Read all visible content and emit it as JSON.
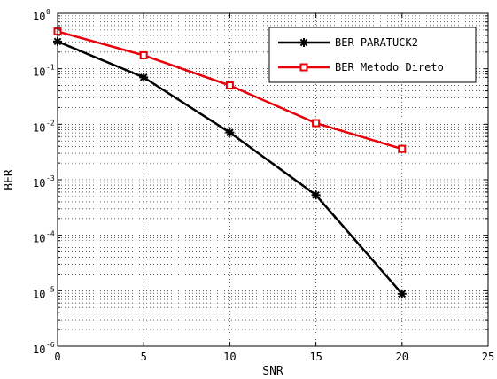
{
  "chart_data": {
    "type": "line",
    "title": "",
    "xlabel": "SNR",
    "ylabel": "BER",
    "xlim": [
      0,
      25
    ],
    "ylim": [
      1e-06,
      1
    ],
    "yscale": "log",
    "grid": true,
    "legend_position": "top-right",
    "xticks": [
      "0",
      "5",
      "10",
      "15",
      "20",
      "25"
    ],
    "yticks": [
      {
        "base": "10",
        "exp": "0"
      },
      {
        "base": "10",
        "exp": "-1"
      },
      {
        "base": "10",
        "exp": "-2"
      },
      {
        "base": "10",
        "exp": "-3"
      },
      {
        "base": "10",
        "exp": "-4"
      },
      {
        "base": "10",
        "exp": "-5"
      },
      {
        "base": "10",
        "exp": "-6"
      }
    ],
    "series": [
      {
        "name": "BER PARATUCK2",
        "color": "#000000",
        "marker": "asterisk",
        "x": [
          0,
          5,
          10,
          15,
          20
        ],
        "y": [
          0.31,
          0.07,
          0.0071,
          0.00053,
          8.8e-06
        ]
      },
      {
        "name": "BER Metodo Direto",
        "color": "#e8000b",
        "marker": "square",
        "x": [
          0,
          5,
          10,
          15,
          20
        ],
        "y": [
          0.47,
          0.175,
          0.05,
          0.0105,
          0.0036
        ]
      }
    ]
  }
}
